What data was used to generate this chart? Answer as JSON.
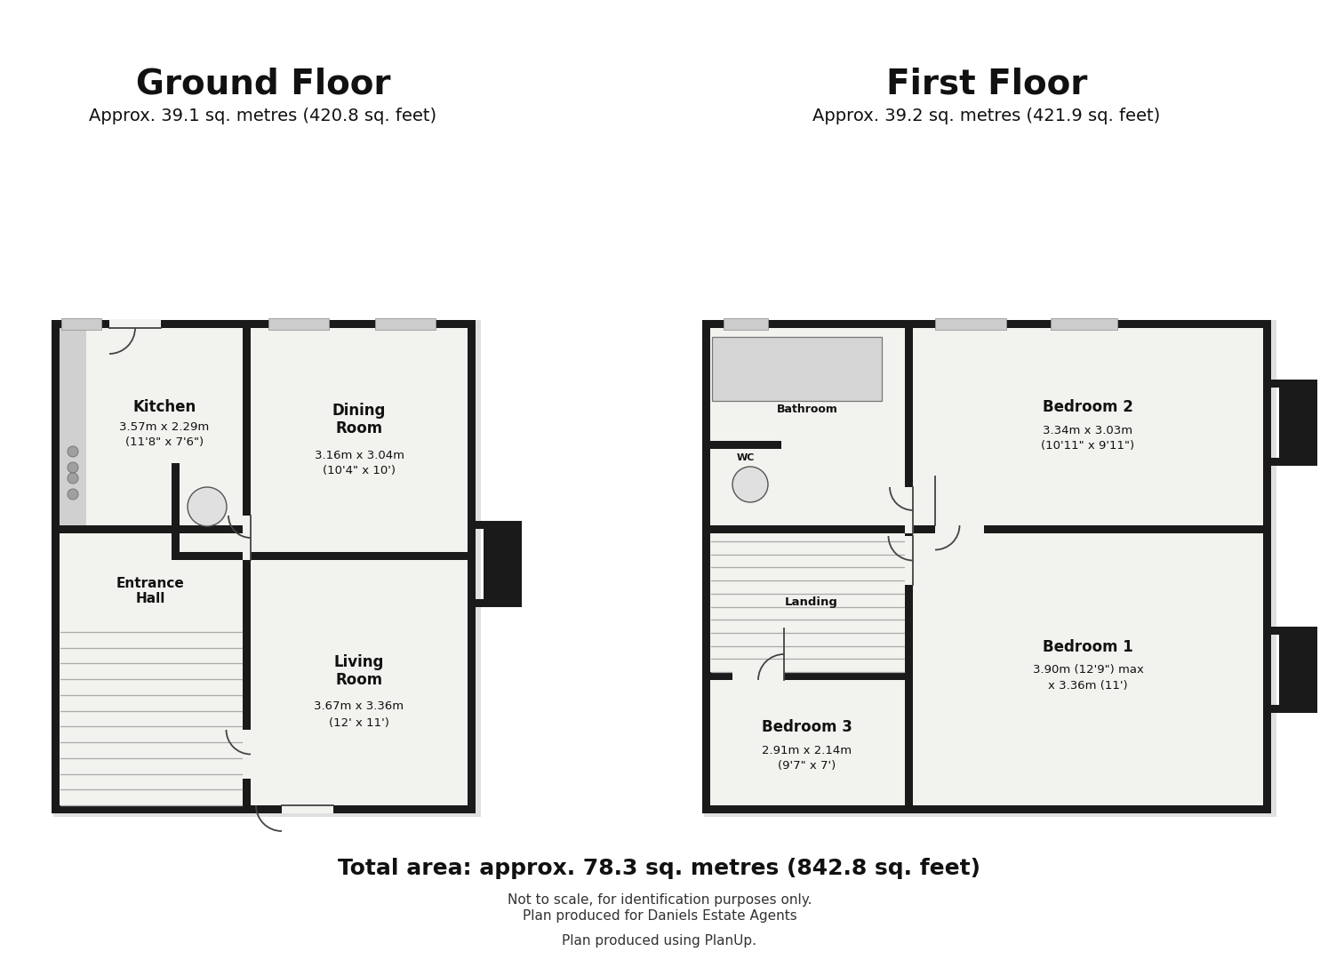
{
  "bg": "#ffffff",
  "wall": "#1a1a1a",
  "floor": "#f2f2ee",
  "rad": "#cccccc",
  "title_gf": "Ground Floor",
  "sub_gf": "Approx. 39.1 sq. metres (420.8 sq. feet)",
  "title_ff": "First Floor",
  "sub_ff": "Approx. 39.2 sq. metres (421.9 sq. feet)",
  "footer1": "Total area: approx. 78.3 sq. metres (842.8 sq. feet)",
  "footer2": "Not to scale, for identification purposes only.",
  "footer3": "Plan produced for Daniels Estate Agents",
  "footer4": "Plan produced using PlanUp.",
  "kitchen_label": "Kitchen",
  "kitchen_d1": "3.57m x 2.29m",
  "kitchen_d2": "(11'8\" x 7'6\")",
  "dining_label": "Dining\nRoom",
  "dining_d1": "3.16m x 3.04m",
  "dining_d2": "(10'4\" x 10')",
  "living_label": "Living\nRoom",
  "living_d1": "3.67m x 3.36m",
  "living_d2": "(12' x 11')",
  "entrance_label": "Entrance\nHall",
  "bath_label": "Bathroom",
  "wc_label": "WC",
  "landing_label": "Landing",
  "bed1_label": "Bedroom 1",
  "bed1_d1": "3.90m (12'9\") max",
  "bed1_d2": "x 3.36m (11')",
  "bed2_label": "Bedroom 2",
  "bed2_d1": "3.34m x 3.03m",
  "bed2_d2": "(10'11\" x 9'11\")",
  "bed3_label": "Bedroom 3",
  "bed3_d1": "2.91m x 2.14m",
  "bed3_d2": "(9'7\" x 7')"
}
